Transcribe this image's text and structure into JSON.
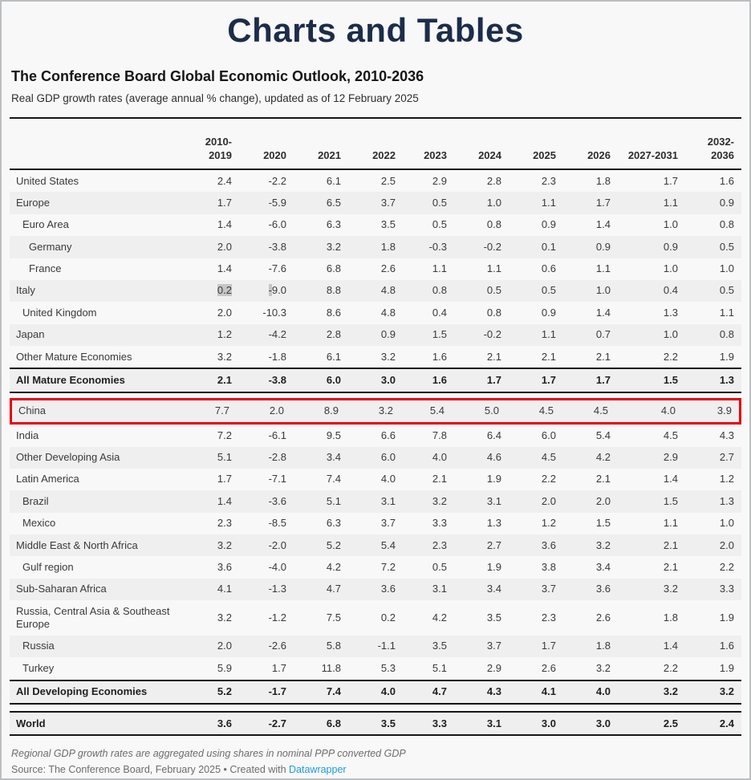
{
  "page": {
    "title": "Charts and Tables",
    "heading": "The Conference Board Global Economic Outlook, 2010-2036",
    "subtitle": "Real GDP growth rates (average annual % change), updated as of 12 February 2025",
    "footnote": "Regional GDP growth rates are aggregated using shares in nominal PPP converted GDP",
    "source_prefix": "Source: The Conference Board, February 2025 • Created with ",
    "source_link": "Datawrapper"
  },
  "colors": {
    "title_navy": "#1b2d49",
    "highlight_red": "#e8000d",
    "link_blue": "#1d9cd8",
    "selection_gray": "#c6c6c6",
    "stripe_gray": "#efefef"
  },
  "chart_data": {
    "type": "table",
    "title": "The Conference Board Global Economic Outlook, 2010-2036",
    "subtitle": "Real GDP growth rates (average annual % change), updated as of 12 February 2025",
    "columns": [
      "2010-2019",
      "2020",
      "2021",
      "2022",
      "2023",
      "2024",
      "2025",
      "2026",
      "2027-2031",
      "2032-2036"
    ],
    "rows": [
      {
        "label": "United States",
        "indent": 0,
        "shade": "white",
        "values": [
          "2.4",
          "-2.2",
          "6.1",
          "2.5",
          "2.9",
          "2.8",
          "2.3",
          "1.8",
          "1.7",
          "1.6"
        ]
      },
      {
        "label": "Europe",
        "indent": 0,
        "shade": "gray",
        "values": [
          "1.7",
          "-5.9",
          "6.5",
          "3.7",
          "0.5",
          "1.0",
          "1.1",
          "1.7",
          "1.1",
          "0.9"
        ]
      },
      {
        "label": "Euro Area",
        "indent": 1,
        "shade": "white",
        "values": [
          "1.4",
          "-6.0",
          "6.3",
          "3.5",
          "0.5",
          "0.8",
          "0.9",
          "1.4",
          "1.0",
          "0.8"
        ]
      },
      {
        "label": "Germany",
        "indent": 2,
        "shade": "gray",
        "values": [
          "2.0",
          "-3.8",
          "3.2",
          "1.8",
          "-0.3",
          "-0.2",
          "0.1",
          "0.9",
          "0.9",
          "0.5"
        ]
      },
      {
        "label": "France",
        "indent": 2,
        "shade": "white",
        "values": [
          "1.4",
          "-7.6",
          "6.8",
          "2.6",
          "1.1",
          "1.1",
          "0.6",
          "1.1",
          "1.0",
          "1.0"
        ]
      },
      {
        "label": "Italy",
        "indent": 0,
        "shade": "gray",
        "sel": [
          {
            "col": 0,
            "n": 3
          },
          {
            "col": 1,
            "n": 1
          }
        ],
        "values": [
          "0.2",
          "-9.0",
          "8.8",
          "4.8",
          "0.8",
          "0.5",
          "0.5",
          "1.0",
          "0.4",
          "0.5"
        ]
      },
      {
        "label": "United Kingdom",
        "indent": 1,
        "shade": "white",
        "values": [
          "2.0",
          "-10.3",
          "8.6",
          "4.8",
          "0.4",
          "0.8",
          "0.9",
          "1.4",
          "1.3",
          "1.1"
        ]
      },
      {
        "label": "Japan",
        "indent": 0,
        "shade": "gray",
        "values": [
          "1.2",
          "-4.2",
          "2.8",
          "0.9",
          "1.5",
          "-0.2",
          "1.1",
          "0.7",
          "1.0",
          "0.8"
        ]
      },
      {
        "label": "Other Mature Economies",
        "indent": 0,
        "shade": "white",
        "values": [
          "3.2",
          "-1.8",
          "6.1",
          "3.2",
          "1.6",
          "2.1",
          "2.1",
          "2.1",
          "2.2",
          "1.9"
        ]
      },
      {
        "label": "All Mature Economies",
        "indent": 0,
        "shade": "gray",
        "bold": true,
        "rule": true,
        "values": [
          "2.1",
          "-3.8",
          "6.0",
          "3.0",
          "1.6",
          "1.7",
          "1.7",
          "1.7",
          "1.5",
          "1.3"
        ]
      },
      {
        "label": "China",
        "indent": 0,
        "shade": "gray",
        "red_box": true,
        "values": [
          "7.7",
          "2.0",
          "8.9",
          "3.2",
          "5.4",
          "5.0",
          "4.5",
          "4.5",
          "4.0",
          "3.9"
        ]
      },
      {
        "label": "India",
        "indent": 0,
        "shade": "white",
        "values": [
          "7.2",
          "-6.1",
          "9.5",
          "6.6",
          "7.8",
          "6.4",
          "6.0",
          "5.4",
          "4.5",
          "4.3"
        ]
      },
      {
        "label": "Other Developing Asia",
        "indent": 0,
        "shade": "gray",
        "values": [
          "5.1",
          "-2.8",
          "3.4",
          "6.0",
          "4.0",
          "4.6",
          "4.5",
          "4.2",
          "2.9",
          "2.7"
        ]
      },
      {
        "label": "Latin America",
        "indent": 0,
        "shade": "white",
        "values": [
          "1.7",
          "-7.1",
          "7.4",
          "4.0",
          "2.1",
          "1.9",
          "2.2",
          "2.1",
          "1.4",
          "1.2"
        ]
      },
      {
        "label": "Brazil",
        "indent": 1,
        "shade": "gray",
        "values": [
          "1.4",
          "-3.6",
          "5.1",
          "3.1",
          "3.2",
          "3.1",
          "2.0",
          "2.0",
          "1.5",
          "1.3"
        ]
      },
      {
        "label": "Mexico",
        "indent": 1,
        "shade": "white",
        "values": [
          "2.3",
          "-8.5",
          "6.3",
          "3.7",
          "3.3",
          "1.3",
          "1.2",
          "1.5",
          "1.1",
          "1.0"
        ]
      },
      {
        "label": "Middle East & North Africa",
        "indent": 0,
        "shade": "gray",
        "values": [
          "3.2",
          "-2.0",
          "5.2",
          "5.4",
          "2.3",
          "2.7",
          "3.6",
          "3.2",
          "2.1",
          "2.0"
        ]
      },
      {
        "label": "Gulf region",
        "indent": 1,
        "shade": "white",
        "values": [
          "3.6",
          "-4.0",
          "4.2",
          "7.2",
          "0.5",
          "1.9",
          "3.8",
          "3.4",
          "2.1",
          "2.2"
        ]
      },
      {
        "label": "Sub-Saharan Africa",
        "indent": 0,
        "shade": "gray",
        "values": [
          "4.1",
          "-1.3",
          "4.7",
          "3.6",
          "3.1",
          "3.4",
          "3.7",
          "3.6",
          "3.2",
          "3.3"
        ]
      },
      {
        "label": "Russia, Central Asia & Southeast Europe",
        "indent": 0,
        "shade": "white",
        "values": [
          "3.2",
          "-1.2",
          "7.5",
          "0.2",
          "4.2",
          "3.5",
          "2.3",
          "2.6",
          "1.8",
          "1.9"
        ]
      },
      {
        "label": "Russia",
        "indent": 1,
        "shade": "gray",
        "values": [
          "2.0",
          "-2.6",
          "5.8",
          "-1.1",
          "3.5",
          "3.7",
          "1.7",
          "1.8",
          "1.4",
          "1.6"
        ]
      },
      {
        "label": "Turkey",
        "indent": 1,
        "shade": "white",
        "values": [
          "5.9",
          "1.7",
          "11.8",
          "5.3",
          "5.1",
          "2.9",
          "2.6",
          "3.2",
          "2.2",
          "1.9"
        ]
      },
      {
        "label": "All Developing Economies",
        "indent": 0,
        "shade": "gray",
        "bold": true,
        "rule": true,
        "values": [
          "5.2",
          "-1.7",
          "7.4",
          "4.0",
          "4.7",
          "4.3",
          "4.1",
          "4.0",
          "3.2",
          "3.2"
        ]
      },
      {
        "label": "World",
        "indent": 0,
        "shade": "gray",
        "bold": true,
        "rule": true,
        "gap": true,
        "values": [
          "3.6",
          "-2.7",
          "6.8",
          "3.5",
          "3.3",
          "3.1",
          "3.0",
          "3.0",
          "2.5",
          "2.4"
        ]
      }
    ]
  }
}
